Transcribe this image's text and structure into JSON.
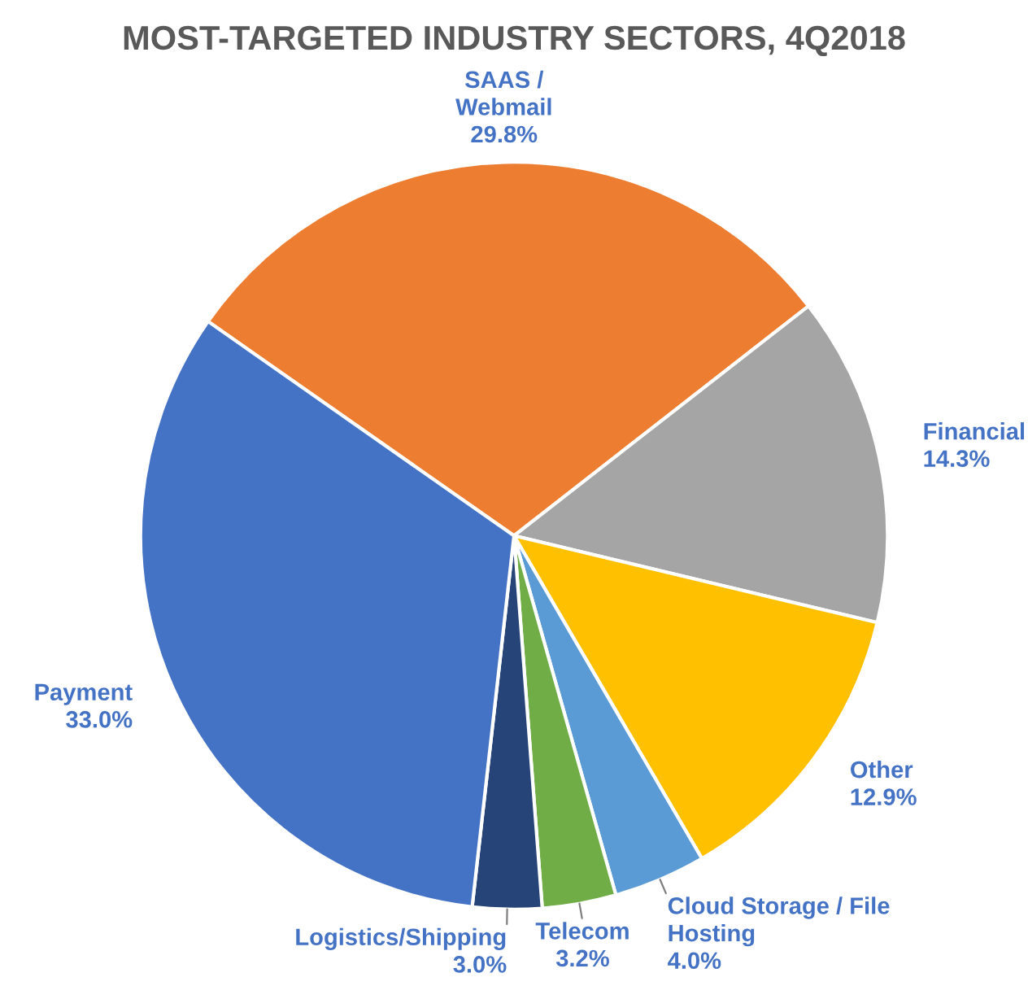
{
  "chart_data": {
    "type": "pie",
    "title": "MOST-TARGETED INDUSTRY SECTORS, 4Q2018",
    "categories": [
      "SAAS /\nWebmail",
      "Financial",
      "Other",
      "Cloud Storage / File\nHosting",
      "Telecom",
      "Logistics/Shipping",
      "Payment"
    ],
    "values": [
      29.8,
      14.3,
      12.9,
      4.0,
      3.2,
      3.0,
      33.0
    ],
    "value_labels": [
      "29.8%",
      "14.3%",
      "12.9%",
      "4.0%",
      "3.2%",
      "3.0%",
      "33.0%"
    ],
    "colors": [
      "#ed7d31",
      "#a5a5a5",
      "#ffc000",
      "#5b9bd5",
      "#70ad47",
      "#264478",
      "#4472c4"
    ],
    "legend": false
  }
}
